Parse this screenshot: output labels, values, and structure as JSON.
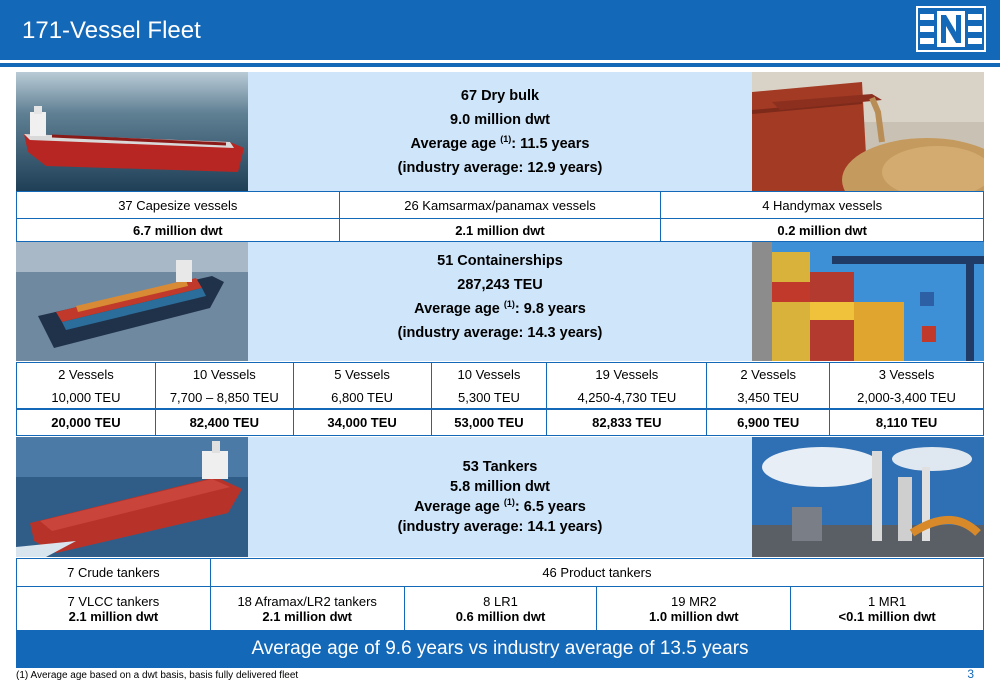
{
  "header": {
    "title": "171-Vessel Fleet",
    "logo_icon": "navios-n-logo"
  },
  "colors": {
    "brand_blue": "#1468b8",
    "panel_light_blue": "#cfe5f9"
  },
  "dry_bulk": {
    "line1": "67 Dry bulk",
    "line2": "9.0 million dwt",
    "age_prefix": "Average age ",
    "age_note": "(1)",
    "age_suffix": ": 11.5 years",
    "line4": "(industry average: 12.9 years)",
    "segments": [
      {
        "name": "37 Capesize vessels",
        "dwt": "6.7 million dwt"
      },
      {
        "name": "26 Kamsarmax/panamax vessels",
        "dwt": "2.1 million dwt"
      },
      {
        "name": "4 Handymax vessels",
        "dwt": "0.2 million dwt"
      }
    ],
    "photos": [
      "bulk-carrier-photo",
      "grain-harvest-photo"
    ]
  },
  "containers": {
    "line1": "51 Containerships",
    "line2": "287,243 TEU",
    "age_prefix": "Average age ",
    "age_note": "(1)",
    "age_suffix": ": 9.8 years",
    "line4": "(industry average: 14.3 years)",
    "segments": [
      {
        "count": "2 Vessels",
        "size": "10,000 TEU",
        "total": "20,000 TEU"
      },
      {
        "count": "10 Vessels",
        "size": "7,700 – 8,850 TEU",
        "total": "82,400 TEU"
      },
      {
        "count": "5 Vessels",
        "size": "6,800 TEU",
        "total": "34,000 TEU"
      },
      {
        "count": "10 Vessels",
        "size": "5,300 TEU",
        "total": "53,000 TEU"
      },
      {
        "count": "19 Vessels",
        "size": "4,250-4,730 TEU",
        "total": "82,833 TEU"
      },
      {
        "count": "2 Vessels",
        "size": "3,450 TEU",
        "total": "6,900 TEU"
      },
      {
        "count": "3 Vessels",
        "size": "2,000-3,400 TEU",
        "total": "8,110 TEU"
      }
    ],
    "photos": [
      "containership-photo",
      "container-port-photo"
    ]
  },
  "tankers": {
    "line1": "53 Tankers",
    "line2": "5.8 million dwt",
    "age_prefix": "Average age ",
    "age_note": "(1)",
    "age_suffix": ": 6.5 years",
    "line4": "(industry average: 14.1 years)",
    "crude_label": "7 Crude tankers",
    "product_label": "46 Product tankers",
    "segments": [
      {
        "name": "7 VLCC tankers",
        "dwt": "2.1 million dwt"
      },
      {
        "name": "18 Aframax/LR2 tankers",
        "dwt": "2.1 million dwt"
      },
      {
        "name": "8 LR1",
        "dwt": "0.6 million dwt"
      },
      {
        "name": "19 MR2",
        "dwt": "1.0 million dwt"
      },
      {
        "name": "1 MR1",
        "dwt": "<0.1 million dwt"
      }
    ],
    "photos": [
      "tanker-photo",
      "refinery-photo"
    ]
  },
  "footer": {
    "summary": "Average age of 9.6 years vs industry average of 13.5 years",
    "footnote": "(1) Average age based on a dwt basis, basis fully delivered fleet",
    "page_number": "3"
  }
}
